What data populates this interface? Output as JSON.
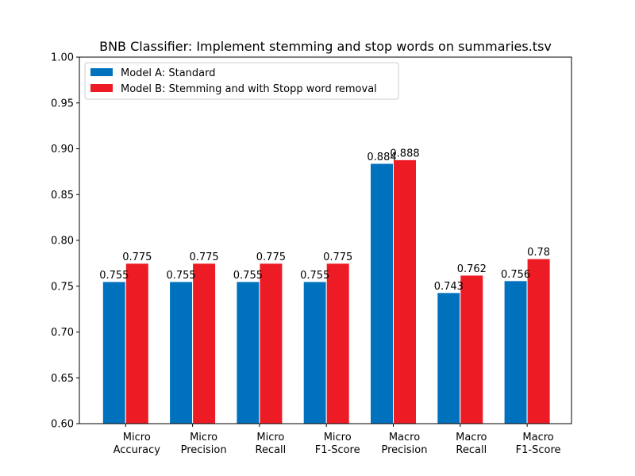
{
  "chart_data": {
    "type": "bar",
    "title": "BNB Classifier: Implement stemming and stop words on summaries.tsv",
    "xlabel": "",
    "ylabel": "",
    "ylim": [
      0.6,
      1.0
    ],
    "yticks": [
      "0.60",
      "0.65",
      "0.70",
      "0.75",
      "0.80",
      "0.85",
      "0.90",
      "0.95",
      "1.00"
    ],
    "ytick_values": [
      0.6,
      0.65,
      0.7,
      0.75,
      0.8,
      0.85,
      0.9,
      0.95,
      1.0
    ],
    "grid": false,
    "legend_position": "top-left",
    "categories": [
      [
        "Micro",
        "Accuracy"
      ],
      [
        "Micro",
        "Precision"
      ],
      [
        "Micro",
        "Recall"
      ],
      [
        "Micro",
        "F1-Score"
      ],
      [
        "Macro",
        "Precision"
      ],
      [
        "Macro",
        "Recall"
      ],
      [
        "Macro",
        "F1-Score"
      ]
    ],
    "series": [
      {
        "name": "Model A: Standard",
        "color": "#0072bd",
        "values": [
          0.755,
          0.755,
          0.755,
          0.755,
          0.884,
          0.743,
          0.756
        ],
        "labels": [
          "0.755",
          "0.755",
          "0.755",
          "0.755",
          "0.884",
          "0.743",
          "0.756"
        ]
      },
      {
        "name": "Model B: Stemming and with Stopp word removal",
        "color": "#ed1c24",
        "values": [
          0.775,
          0.775,
          0.775,
          0.775,
          0.888,
          0.762,
          0.78
        ],
        "labels": [
          "0.775",
          "0.775",
          "0.775",
          "0.775",
          "0.888",
          "0.762",
          "0.78"
        ]
      }
    ]
  }
}
